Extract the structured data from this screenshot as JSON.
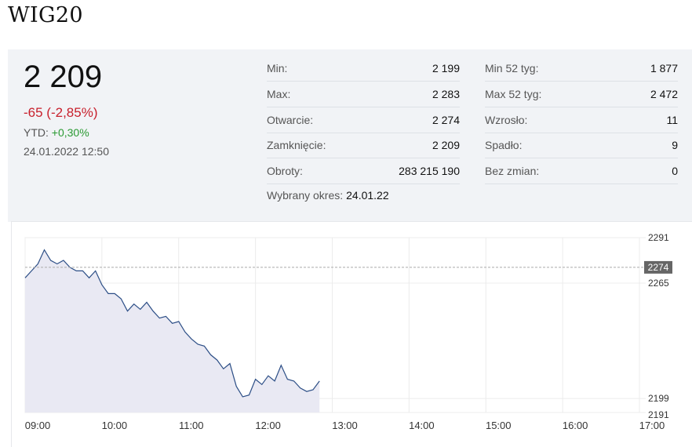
{
  "title": "WIG20",
  "quote": {
    "price": "2 209",
    "change": "-65 (-2,85%)",
    "ytd_label": "YTD:",
    "ytd_value": "+0,30%",
    "datetime": "24.01.2022 12:50"
  },
  "stats_left": [
    {
      "label": "Min:",
      "value": "2 199"
    },
    {
      "label": "Max:",
      "value": "2 283"
    },
    {
      "label": "Otwarcie:",
      "value": "2 274"
    },
    {
      "label": "Zamknięcie:",
      "value": "2 209"
    },
    {
      "label": "Obroty:",
      "value": "283 215 190"
    }
  ],
  "stats_right": [
    {
      "label": "Min 52 tyg:",
      "value": "1 877"
    },
    {
      "label": "Max 52 tyg:",
      "value": "2 472"
    },
    {
      "label": "Wzrosło:",
      "value": "11"
    },
    {
      "label": "Spadło:",
      "value": "9"
    },
    {
      "label": "Bez zmian:",
      "value": "0"
    }
  ],
  "period": {
    "label": "Wybrany okres:",
    "value": "24.01.22"
  },
  "colors": {
    "line": "#2c4e86",
    "fill": "#e9e9f3",
    "negative": "#c8202c",
    "positive": "#2a9a33",
    "reference_tag": "#666666"
  },
  "chart_data": {
    "type": "area",
    "x_ticks": [
      "09:00",
      "10:00",
      "11:00",
      "12:00",
      "13:00",
      "14:00",
      "15:00",
      "16:00",
      "17:00"
    ],
    "y_ticks": [
      "2291",
      "2265",
      "2199",
      "2191"
    ],
    "ylim": [
      2191,
      2291
    ],
    "reference": {
      "label": "2274",
      "value": 2274
    },
    "series": [
      {
        "x": [
          "09:00",
          "09:05",
          "09:10",
          "09:15",
          "09:20",
          "09:25",
          "09:30",
          "09:35",
          "09:40",
          "09:45",
          "09:50",
          "09:55",
          "10:00",
          "10:05",
          "10:10",
          "10:15",
          "10:20",
          "10:25",
          "10:30",
          "10:35",
          "10:40",
          "10:45",
          "10:50",
          "10:55",
          "11:00",
          "11:05",
          "11:10",
          "11:15",
          "11:20",
          "11:25",
          "11:30",
          "11:35",
          "11:40",
          "11:45",
          "11:50",
          "11:55",
          "12:00",
          "12:05",
          "12:10",
          "12:15",
          "12:20",
          "12:25",
          "12:30",
          "12:35",
          "12:40",
          "12:45",
          "12:50"
        ],
        "values": [
          2268,
          2272,
          2276,
          2284,
          2278,
          2276,
          2278,
          2274,
          2272,
          2272,
          2268,
          2272,
          2264,
          2259,
          2259,
          2256,
          2249,
          2253,
          2250,
          2254,
          2249,
          2245,
          2246,
          2242,
          2243,
          2237,
          2233,
          2230,
          2229,
          2224,
          2221,
          2216,
          2219,
          2206,
          2200,
          2201,
          2210,
          2207,
          2212,
          2209,
          2218,
          2210,
          2209,
          2205,
          2203,
          2204,
          2209
        ]
      }
    ]
  }
}
